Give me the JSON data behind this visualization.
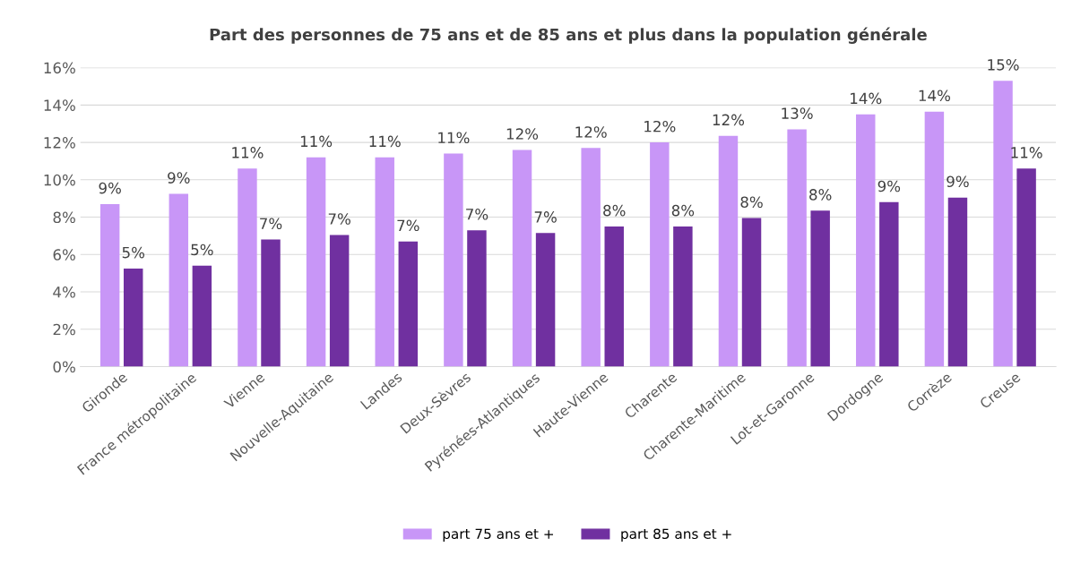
{
  "chart_data": {
    "type": "bar",
    "title": "Part des personnes de 75 ans et de 85 ans et plus dans la population générale",
    "categories": [
      "Gironde",
      "France métropolitaine",
      "Vienne",
      "Nouvelle-Aquitaine",
      "Landes",
      "Deux-Sèvres",
      "Pyrénées-Atlantiques",
      "Haute-Vienne",
      "Charente",
      "Charente-Maritime",
      "Lot-et-Garonne",
      "Dordogne",
      "Corrèze",
      "Creuse"
    ],
    "series": [
      {
        "name": "part 75 ans et +",
        "color": "#c896f7",
        "values": [
          8.7,
          9.25,
          10.6,
          11.2,
          11.2,
          11.4,
          11.6,
          11.7,
          12.0,
          12.35,
          12.7,
          13.5,
          13.65,
          15.3
        ],
        "value_labels": [
          "9%",
          "9%",
          "11%",
          "11%",
          "11%",
          "11%",
          "12%",
          "12%",
          "12%",
          "12%",
          "13%",
          "14%",
          "14%",
          "15%"
        ]
      },
      {
        "name": "part 85 ans et +",
        "color": "#7030a0",
        "values": [
          5.25,
          5.4,
          6.8,
          7.05,
          6.7,
          7.3,
          7.15,
          7.5,
          7.5,
          7.95,
          8.35,
          8.8,
          9.05,
          10.6
        ],
        "value_labels": [
          "5%",
          "5%",
          "7%",
          "7%",
          "7%",
          "7%",
          "7%",
          "8%",
          "8%",
          "8%",
          "8%",
          "9%",
          "9%",
          "11%"
        ]
      }
    ],
    "ylim": [
      0,
      16
    ],
    "yticks": [
      {
        "value": 0,
        "label": "0%"
      },
      {
        "value": 2,
        "label": "2%"
      },
      {
        "value": 4,
        "label": "4%"
      },
      {
        "value": 6,
        "label": "6%"
      },
      {
        "value": 8,
        "label": "8%"
      },
      {
        "value": 10,
        "label": "10%"
      },
      {
        "value": 12,
        "label": "12%"
      },
      {
        "value": 14,
        "label": "14%"
      },
      {
        "value": 16,
        "label": "16%"
      }
    ],
    "grid": "y",
    "legend": "bottom"
  }
}
